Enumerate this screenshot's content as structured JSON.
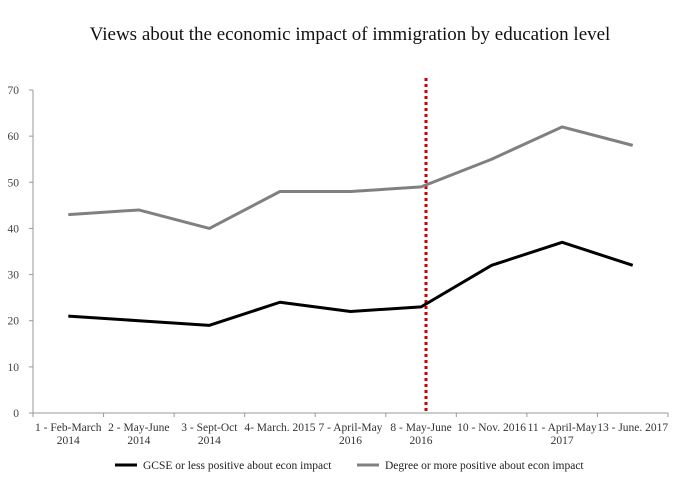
{
  "chart_data": {
    "type": "line",
    "title": "Views about the economic impact of immigration by education level",
    "xlabel": "",
    "ylabel": "",
    "ylim": [
      0,
      70
    ],
    "yticks": [
      0,
      10,
      20,
      30,
      40,
      50,
      60,
      70
    ],
    "categories": [
      [
        "1 - Feb-March",
        "2014"
      ],
      [
        "2 - May-June",
        "2014"
      ],
      [
        "3 - Sept-Oct",
        "2014"
      ],
      [
        "4- March. 2015"
      ],
      [
        "7 - April-May",
        "2016"
      ],
      [
        "8 - May-June",
        "2016"
      ],
      [
        "10 - Nov. 2016"
      ],
      [
        "11 - April-May",
        "2017"
      ],
      [
        "13 - June. 2017"
      ]
    ],
    "series": [
      {
        "name": "GCSE or less positive about econ impact",
        "color": "#000000",
        "values": [
          21,
          20,
          19,
          24,
          22,
          23,
          32,
          37,
          32
        ]
      },
      {
        "name": "Degree or more positive about econ impact",
        "color": "#808080",
        "values": [
          43,
          44,
          40,
          48,
          48,
          49,
          55,
          62,
          58
        ]
      }
    ],
    "reference_line": {
      "style": "dotted",
      "color": "#cc0000",
      "at_category_index": 5.07
    },
    "grid": false,
    "legend_position": "bottom"
  }
}
